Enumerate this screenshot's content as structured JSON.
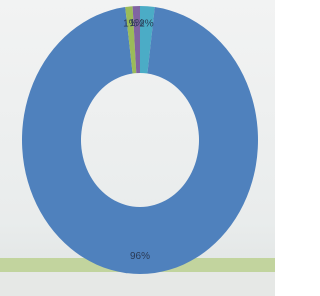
{
  "chart_data": {
    "type": "donut",
    "values": [
      2,
      96,
      1,
      1
    ],
    "value_labels": [
      "2%",
      "96%",
      "1%",
      "1%"
    ],
    "colors": [
      "#4bacc6",
      "#4f81bd",
      "#9bbb59",
      "#8064a2"
    ]
  }
}
